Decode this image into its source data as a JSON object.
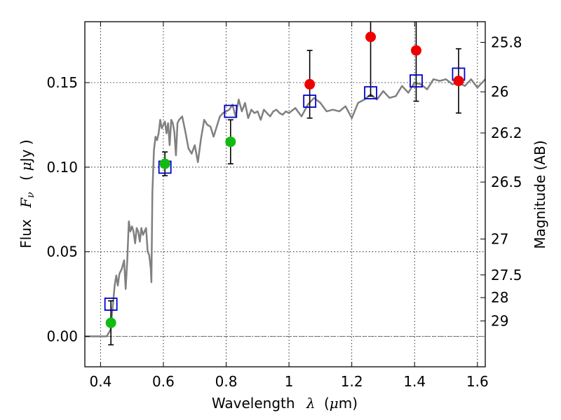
{
  "chart_data": {
    "type": "scatter",
    "xlabel": "Wavelength",
    "xlabel_symbol": "λ",
    "xlabel_unit_open": "(",
    "xlabel_unit_mu": "μ",
    "xlabel_unit_rest": "m)",
    "ylabel": "Flux",
    "ylabel_symbol": "F",
    "ylabel_subscript": "ν",
    "ylabel_unit_open": "(",
    "ylabel_unit_mu": "μ",
    "ylabel_unit_rest": "Jy )",
    "y2label": "Magnitude (AB)",
    "xlim": [
      0.35,
      1.625
    ],
    "ylim": [
      -0.018,
      0.186
    ],
    "grid": true,
    "x_ticks": [
      {
        "value": 0.4,
        "label": "0.4"
      },
      {
        "value": 0.6,
        "label": "0.6"
      },
      {
        "value": 0.8,
        "label": "0.8"
      },
      {
        "value": 1.0,
        "label": "1"
      },
      {
        "value": 1.2,
        "label": "1.2"
      },
      {
        "value": 1.4,
        "label": "1.4"
      },
      {
        "value": 1.6,
        "label": "1.6"
      }
    ],
    "y_ticks": [
      {
        "value": 0.0,
        "label": "0.00"
      },
      {
        "value": 0.05,
        "label": "0.05"
      },
      {
        "value": 0.1,
        "label": "0.10"
      },
      {
        "value": 0.15,
        "label": "0.15"
      }
    ],
    "mag_ticks": [
      {
        "value": 25.8,
        "label": "25.8"
      },
      {
        "value": 26.0,
        "label": "26"
      },
      {
        "value": 26.2,
        "label": "26.2"
      },
      {
        "value": 26.5,
        "label": "26.5"
      },
      {
        "value": 27.0,
        "label": "27"
      },
      {
        "value": 27.5,
        "label": "27.5"
      },
      {
        "value": 28.0,
        "label": "28"
      },
      {
        "value": 29.0,
        "label": "29"
      }
    ],
    "zero_line": 0.0,
    "colors": {
      "model": "#808080",
      "model_points": "#0000cc",
      "optical": "#11bb11",
      "infrared": "#ee0000",
      "errorbar": "#000000",
      "zero_line": "#555555"
    },
    "series": [
      {
        "role": "model-spectrum",
        "x": [
          0.35,
          0.375,
          0.4,
          0.42,
          0.432,
          0.44,
          0.445,
          0.45,
          0.455,
          0.46,
          0.468,
          0.475,
          0.48,
          0.485,
          0.49,
          0.495,
          0.5,
          0.505,
          0.51,
          0.515,
          0.52,
          0.525,
          0.53,
          0.535,
          0.54,
          0.545,
          0.55,
          0.555,
          0.56,
          0.562,
          0.565,
          0.57,
          0.575,
          0.58,
          0.585,
          0.59,
          0.595,
          0.6,
          0.605,
          0.61,
          0.615,
          0.62,
          0.625,
          0.63,
          0.635,
          0.64,
          0.645,
          0.65,
          0.66,
          0.67,
          0.68,
          0.69,
          0.7,
          0.71,
          0.72,
          0.73,
          0.74,
          0.75,
          0.76,
          0.77,
          0.78,
          0.79,
          0.8,
          0.81,
          0.82,
          0.83,
          0.84,
          0.85,
          0.86,
          0.87,
          0.88,
          0.89,
          0.9,
          0.91,
          0.92,
          0.93,
          0.94,
          0.95,
          0.96,
          0.97,
          0.98,
          0.99,
          1.0,
          1.02,
          1.04,
          1.06,
          1.08,
          1.1,
          1.12,
          1.14,
          1.16,
          1.18,
          1.2,
          1.22,
          1.24,
          1.26,
          1.28,
          1.3,
          1.32,
          1.34,
          1.36,
          1.38,
          1.4,
          1.42,
          1.44,
          1.46,
          1.48,
          1.5,
          1.52,
          1.54,
          1.56,
          1.58,
          1.6,
          1.625
        ],
        "y": [
          0.0,
          0.0,
          0.0,
          0.0,
          0.004,
          0.02,
          0.03,
          0.036,
          0.03,
          0.037,
          0.04,
          0.045,
          0.028,
          0.045,
          0.068,
          0.062,
          0.065,
          0.062,
          0.055,
          0.064,
          0.062,
          0.056,
          0.064,
          0.06,
          0.062,
          0.064,
          0.05,
          0.048,
          0.04,
          0.032,
          0.085,
          0.11,
          0.118,
          0.116,
          0.12,
          0.128,
          0.123,
          0.125,
          0.127,
          0.12,
          0.126,
          0.113,
          0.128,
          0.126,
          0.121,
          0.107,
          0.126,
          0.128,
          0.13,
          0.121,
          0.111,
          0.108,
          0.113,
          0.103,
          0.117,
          0.128,
          0.125,
          0.124,
          0.118,
          0.124,
          0.13,
          0.132,
          0.133,
          0.134,
          0.137,
          0.13,
          0.14,
          0.133,
          0.138,
          0.129,
          0.134,
          0.132,
          0.133,
          0.128,
          0.134,
          0.132,
          0.13,
          0.133,
          0.134,
          0.132,
          0.131,
          0.133,
          0.132,
          0.135,
          0.13,
          0.137,
          0.141,
          0.138,
          0.133,
          0.134,
          0.133,
          0.136,
          0.129,
          0.138,
          0.14,
          0.143,
          0.14,
          0.145,
          0.141,
          0.142,
          0.148,
          0.144,
          0.15,
          0.149,
          0.146,
          0.152,
          0.151,
          0.152,
          0.149,
          0.15,
          0.148,
          0.152,
          0.147,
          0.152
        ]
      },
      {
        "role": "model-bandpass-points",
        "x": [
          0.433,
          0.605,
          0.814,
          1.066,
          1.26,
          1.405,
          1.54
        ],
        "y": [
          0.019,
          0.1,
          0.133,
          0.139,
          0.144,
          0.151,
          0.155
        ]
      },
      {
        "role": "observed-optical",
        "x": [
          0.433,
          0.605,
          0.814
        ],
        "y": [
          0.008,
          0.102,
          0.115
        ],
        "yerr": [
          0.013,
          0.007,
          0.013
        ]
      },
      {
        "role": "observed-infrared",
        "x": [
          1.066,
          1.26,
          1.405,
          1.54
        ],
        "y": [
          0.149,
          0.177,
          0.169,
          0.151
        ],
        "yerr": [
          0.02,
          0.035,
          0.03,
          0.019
        ]
      }
    ]
  }
}
